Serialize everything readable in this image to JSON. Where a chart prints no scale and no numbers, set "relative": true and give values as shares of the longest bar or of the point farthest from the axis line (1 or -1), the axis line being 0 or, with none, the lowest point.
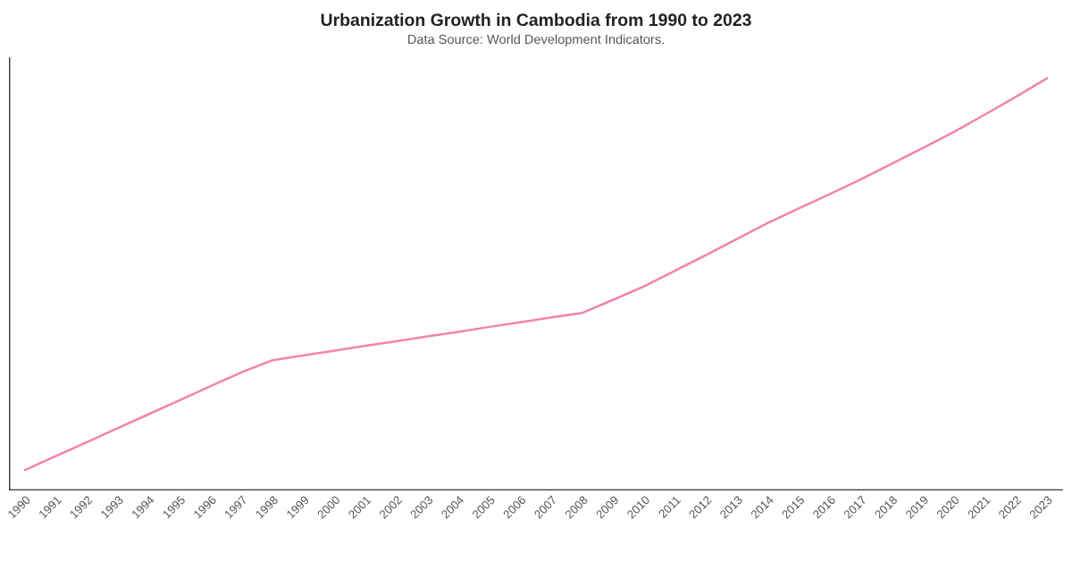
{
  "chart_data": {
    "type": "line",
    "title": "Urbanization Growth in Cambodia from 1990 to 2023",
    "subtitle": "Data Source: World Development Indicators.",
    "categories": [
      "1990",
      "1991",
      "1992",
      "1993",
      "1994",
      "1995",
      "1996",
      "1997",
      "1998",
      "1999",
      "2000",
      "2001",
      "2002",
      "2003",
      "2004",
      "2005",
      "2006",
      "2007",
      "2008",
      "2009",
      "2010",
      "2011",
      "2012",
      "2013",
      "2014",
      "2015",
      "2016",
      "2017",
      "2018",
      "2019",
      "2020",
      "2021",
      "2022",
      "2023"
    ],
    "series": [
      {
        "color": "#f283b0",
        "values": [
          0.048,
          0.082,
          0.116,
          0.15,
          0.184,
          0.218,
          0.252,
          0.286,
          0.315,
          0.327,
          0.338,
          0.35,
          0.361,
          0.373,
          0.384,
          0.396,
          0.407,
          0.419,
          0.43,
          0.462,
          0.495,
          0.533,
          0.571,
          0.61,
          0.649,
          0.684,
          0.719,
          0.755,
          0.793,
          0.831,
          0.87,
          0.912,
          0.955,
          1.0
        ]
      }
    ],
    "relative": true,
    "grid": false,
    "legend": false,
    "marker": "none",
    "line_style": "solid",
    "tick_labels": "x"
  }
}
